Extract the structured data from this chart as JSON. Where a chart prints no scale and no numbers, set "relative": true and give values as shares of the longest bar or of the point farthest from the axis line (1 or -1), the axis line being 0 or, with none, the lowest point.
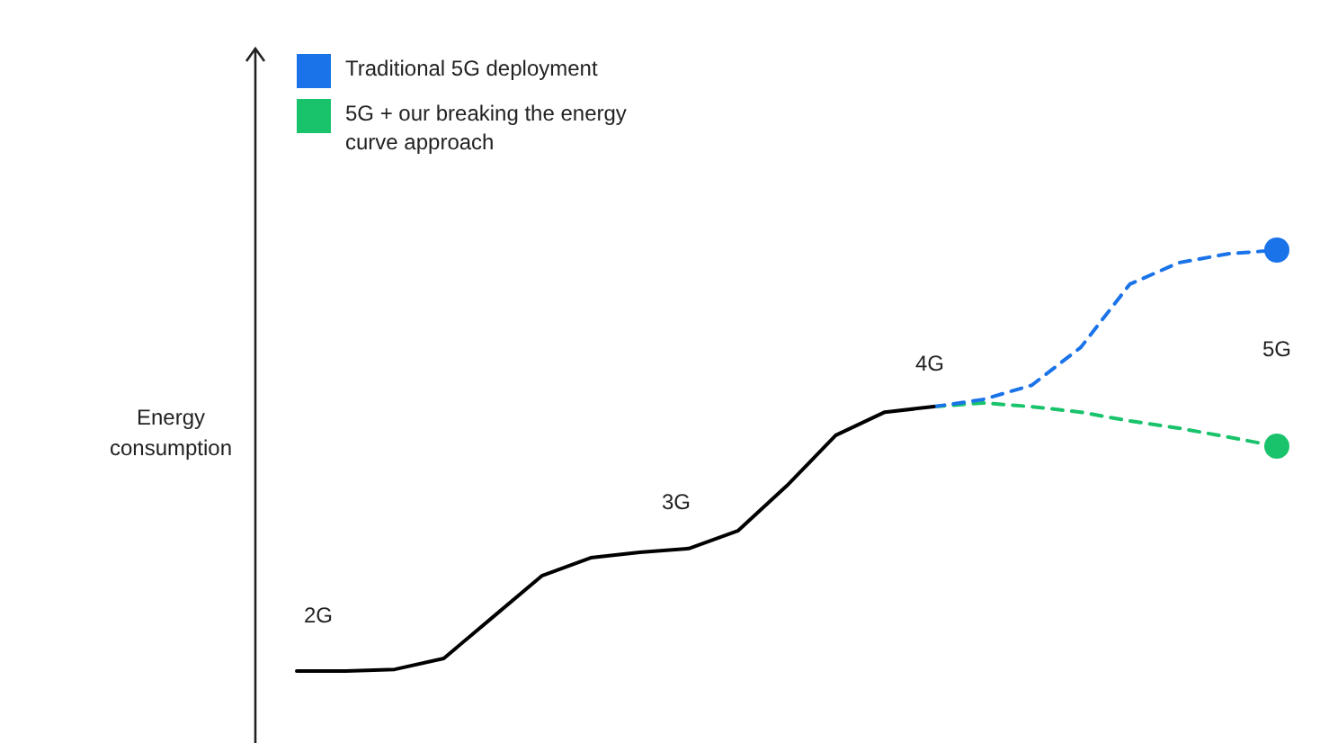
{
  "chart_data": {
    "type": "line",
    "relative": true,
    "ylabel": "Energy consumption",
    "legend": "top left",
    "grid": false,
    "categories": [
      null,
      null,
      null,
      null,
      null,
      null,
      null,
      null,
      null,
      null,
      null,
      null,
      null,
      null,
      null,
      null,
      null,
      null,
      null,
      null,
      null
    ],
    "series": [
      {
        "color": "#000000",
        "line_style": "solid",
        "values": [
          0,
          0,
          0.004,
          0.03,
          0.128,
          0.226,
          0.269,
          0.282,
          0.291,
          0.333,
          0.44,
          0.56,
          0.615,
          0.628,
          null,
          null,
          null,
          null,
          null,
          null,
          null
        ]
      },
      {
        "name": "Traditional 5G deployment",
        "color": "#1a73e8",
        "line_style": "dashed",
        "values": [
          null,
          null,
          null,
          null,
          null,
          null,
          null,
          null,
          null,
          null,
          null,
          null,
          null,
          0.628,
          0.645,
          0.679,
          0.769,
          0.919,
          0.97,
          0.991,
          1
        ]
      },
      {
        "name": "5G + our breaking the energy curve approach",
        "color": "#19c36b",
        "line_style": "dashed",
        "values": [
          null,
          null,
          null,
          null,
          null,
          null,
          null,
          null,
          null,
          null,
          null,
          null,
          null,
          0.628,
          0.637,
          0.628,
          0.615,
          0.594,
          0.577,
          0.556,
          0.534
        ]
      }
    ],
    "annotations": [
      "2G",
      "3G",
      "4G",
      "5G"
    ]
  }
}
